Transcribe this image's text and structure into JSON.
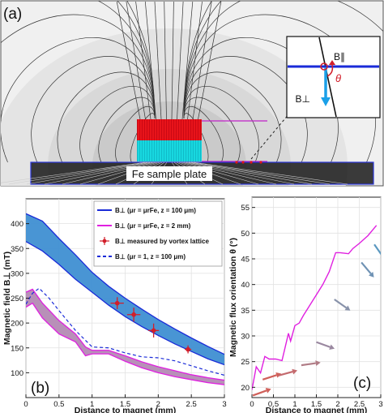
{
  "panels": {
    "a": {
      "label": "(a)"
    },
    "b": {
      "label": "(b)"
    },
    "c": {
      "label": "(c)"
    }
  },
  "panel_a": {
    "plate_label": "Fe sample plate",
    "inset": {
      "b_parallel": "B∥",
      "b_perp": "B⊥",
      "theta": "θ"
    },
    "colors": {
      "magnet_top": "#e8141a",
      "magnet_bottom": "#18d8e0",
      "plate_outline": "#2a35d8",
      "inset_field": "#1a2bd8",
      "inset_arrow": "#1aa0e8",
      "theta_arrow": "#d21e2a",
      "measure_line": "#c020c8"
    }
  },
  "chart_data": [
    {
      "type": "line",
      "panel": "b",
      "xlabel": "Distance to magnet (mm)",
      "ylabel": "Magnetic field B⊥ (mT)",
      "xlim": [
        0,
        3
      ],
      "ylim": [
        50,
        450
      ],
      "xticks": [
        "0",
        "0.5",
        "1",
        "1.5",
        "2",
        "2.5",
        "3"
      ],
      "yticks": [
        "100",
        "150",
        "200",
        "250",
        "300",
        "350",
        "400"
      ],
      "grid": true,
      "legend_position": "top-right",
      "legend": [
        {
          "text": "B⊥ (μr = μrFe, z = 100 μm)",
          "color": "#1a2bd8",
          "style": "solid"
        },
        {
          "text": "B⊥ (μr = μrFe, z = 2 mm)",
          "color": "#e020e0",
          "style": "solid"
        },
        {
          "text": "B⊥ measured by vortex lattice",
          "color": "#d21e2a",
          "style": "errorbar"
        },
        {
          "text": "B⊥ (μr = 1, z = 100 μm)",
          "color": "#1a2bd8",
          "style": "dashed"
        }
      ],
      "bands": [
        {
          "name": "B⊥ (μr = μrFe, z = 100 μm)",
          "fill": "#3f8fd2",
          "edge": "#1a2bd8",
          "x": [
            0,
            0.25,
            0.5,
            0.75,
            1.0,
            1.25,
            1.5,
            1.75,
            2.0,
            2.25,
            2.5,
            2.75,
            3.0
          ],
          "upper": [
            420,
            405,
            370,
            337,
            302,
            274,
            250,
            228,
            207,
            188,
            170,
            153,
            137
          ],
          "lower": [
            364,
            345,
            318,
            288,
            262,
            236,
            213,
            193,
            175,
            158,
            143,
            128,
            116
          ]
        },
        {
          "name": "B⊥ (μr = μrFe, z = 2 mm)",
          "fill": "#b48ab4",
          "edge": "#e020e0",
          "x": [
            0,
            0.1,
            0.25,
            0.5,
            0.75,
            0.9,
            1.0,
            1.25,
            1.5,
            1.75,
            2.0,
            2.25,
            2.5,
            2.75,
            3.0
          ],
          "upper": [
            262,
            268,
            240,
            205,
            178,
            152,
            145,
            145,
            134,
            122,
            112,
            104,
            96,
            90,
            85
          ],
          "lower": [
            232,
            240,
            210,
            178,
            162,
            134,
            138,
            138,
            123,
            110,
            100,
            92,
            86,
            80,
            76
          ]
        }
      ],
      "series": [
        {
          "name": "B⊥ (μr = 1, z = 100 μm)",
          "color": "#1a2bd8",
          "dash": true,
          "x": [
            0,
            0.1,
            0.2,
            0.35,
            0.5,
            0.75,
            1.0,
            1.25,
            1.5,
            1.75,
            2.0,
            2.25,
            2.5,
            2.75,
            3.0
          ],
          "y": [
            238,
            260,
            270,
            250,
            225,
            185,
            152,
            150,
            140,
            132,
            130,
            124,
            114,
            104,
            95
          ]
        }
      ],
      "measured": {
        "name": "B⊥ measured by vortex lattice",
        "color": "#d21e2a",
        "x": [
          1.38,
          1.63,
          1.93,
          2.45
        ],
        "y": [
          240,
          217,
          185,
          147
        ],
        "xerr": [
          0.1,
          0.1,
          0.08,
          0.05
        ],
        "yerr": [
          12,
          14,
          14,
          8
        ]
      }
    },
    {
      "type": "line",
      "panel": "c",
      "xlabel": "Distance to magnet (mm)",
      "ylabel": "Magnetic flux orientation θ (°)",
      "xlim": [
        0,
        3
      ],
      "ylim": [
        18,
        57
      ],
      "xticks": [
        "0",
        "0.5",
        "1",
        "1.5",
        "2",
        "2.5",
        "3"
      ],
      "yticks": [
        "20",
        "25",
        "30",
        "35",
        "40",
        "45",
        "50",
        "55"
      ],
      "grid": true,
      "series": [
        {
          "name": "",
          "color": "#e020e0",
          "x": [
            0,
            0.1,
            0.2,
            0.3,
            0.4,
            0.55,
            0.7,
            0.85,
            0.9,
            1.0,
            1.1,
            1.2,
            1.35,
            1.5,
            1.65,
            1.8,
            1.95,
            2.05,
            2.25,
            2.35,
            2.5,
            2.7,
            2.9
          ],
          "y": [
            19.5,
            24,
            22.8,
            26,
            25.5,
            25.5,
            25.2,
            30.5,
            29,
            32,
            32.5,
            34,
            36,
            38,
            40,
            42.5,
            46.2,
            46.2,
            46,
            47,
            48,
            49.5,
            51.5
          ]
        }
      ],
      "arrows": [
        {
          "x": 0.02,
          "y": 18.4,
          "angle_deg": 20,
          "color": "#d0605a"
        },
        {
          "x": 0.25,
          "y": 21.5,
          "angle_deg": 18,
          "color": "#d0605a"
        },
        {
          "x": 0.62,
          "y": 22.3,
          "angle_deg": 15,
          "color": "#c46a6e"
        },
        {
          "x": 1.15,
          "y": 24.3,
          "angle_deg": 8,
          "color": "#b07c86"
        },
        {
          "x": 1.5,
          "y": 28.8,
          "angle_deg": -20,
          "color": "#9a88a0"
        },
        {
          "x": 1.92,
          "y": 37.1,
          "angle_deg": -35,
          "color": "#8892aa"
        },
        {
          "x": 2.55,
          "y": 44.3,
          "angle_deg": -50,
          "color": "#6f92b4"
        },
        {
          "x": 2.85,
          "y": 47.8,
          "angle_deg": -55,
          "color": "#5b98c0"
        }
      ]
    }
  ]
}
